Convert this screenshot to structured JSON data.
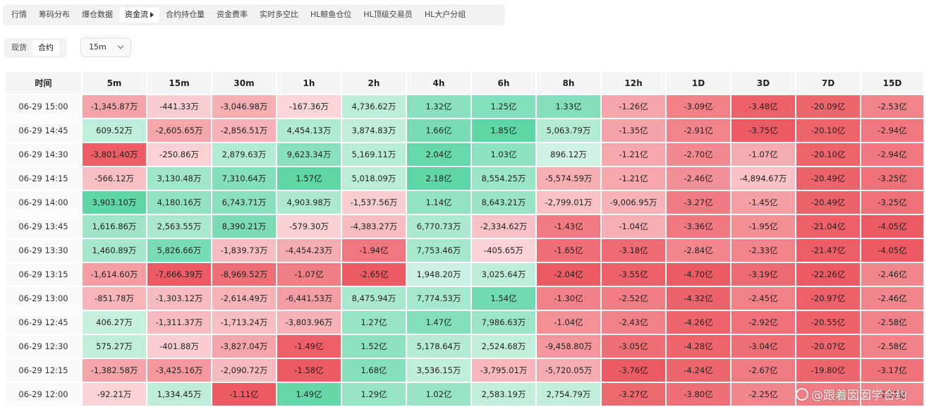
{
  "nav": {
    "tabs": [
      "行情",
      "筹码分布",
      "爆仓数据",
      "资金流",
      "合约持仓量",
      "资金费率",
      "实时多空比",
      "HL鲸鱼仓位",
      "HL顶级交易员",
      "HL大户分组"
    ],
    "active_index": 3
  },
  "segment": {
    "options": [
      "现货",
      "合约"
    ],
    "active_index": 1
  },
  "interval_select": {
    "value": "15m"
  },
  "table": {
    "time_header": "时间",
    "columns": [
      "5m",
      "15m",
      "30m",
      "1h",
      "2h",
      "4h",
      "6h",
      "8h",
      "12h",
      "1D",
      "3D",
      "7D",
      "15D"
    ],
    "rows": [
      {
        "time": "06-29 15:00",
        "cells": [
          "-1,345.87万",
          "-441.33万",
          "-3,046.98万",
          "-167.36万",
          "4,736.62万",
          "1.32亿",
          "1.25亿",
          "1.33亿",
          "-1.26亿",
          "-3.09亿",
          "-3.48亿",
          "-20.09亿",
          "-2.53亿"
        ]
      },
      {
        "time": "06-29 14:45",
        "cells": [
          "609.52万",
          "-2,605.65万",
          "-2,856.51万",
          "4,454.13万",
          "3,874.83万",
          "1.66亿",
          "1.85亿",
          "5,063.79万",
          "-1.35亿",
          "-2.91亿",
          "-3.75亿",
          "-20.10亿",
          "-2.94亿"
        ]
      },
      {
        "time": "06-29 14:30",
        "cells": [
          "-3,801.40万",
          "-250.86万",
          "2,879.63万",
          "9,623.34万",
          "5,169.11万",
          "2.04亿",
          "1.03亿",
          "896.12万",
          "-1.21亿",
          "-2.70亿",
          "-1.07亿",
          "-20.10亿",
          "-2.94亿"
        ]
      },
      {
        "time": "06-29 14:15",
        "cells": [
          "-566.12万",
          "3,130.48万",
          "7,310.64万",
          "1.57亿",
          "5,018.09万",
          "2.18亿",
          "8,554.25万",
          "-5,574.59万",
          "-1.21亿",
          "-2.46亿",
          "-4,894.67万",
          "-20.49亿",
          "-3.25亿"
        ]
      },
      {
        "time": "06-29 14:00",
        "cells": [
          "3,903.10万",
          "4,180.16万",
          "6,743.71万",
          "4,903.98万",
          "-1,537.56万",
          "1.14亿",
          "8,643.21万",
          "-2,799.01万",
          "-9,006.95万",
          "-3.27亿",
          "-1.45亿",
          "-20.49亿",
          "-3.25亿"
        ]
      },
      {
        "time": "06-29 13:45",
        "cells": [
          "1,616.86万",
          "2,563.55万",
          "8,390.21万",
          "-579.30万",
          "-4,383.27万",
          "6,770.73万",
          "-2,334.62万",
          "-1.43亿",
          "-1.04亿",
          "-3.36亿",
          "-1.95亿",
          "-21.04亿",
          "-4.05亿"
        ]
      },
      {
        "time": "06-29 13:30",
        "cells": [
          "1,460.89万",
          "5,826.66万",
          "-1,839.73万",
          "-4,454.23万",
          "-1.94亿",
          "7,753.46万",
          "-405.65万",
          "-1.65亿",
          "-3.18亿",
          "-2.84亿",
          "-2.33亿",
          "-21.47亿",
          "-4.05亿"
        ]
      },
      {
        "time": "06-29 13:15",
        "cells": [
          "-1,614.60万",
          "-7,666.39万",
          "-8,969.52万",
          "-1.07亿",
          "-2.65亿",
          "1,948.20万",
          "3,025.64万",
          "-2.04亿",
          "-3.55亿",
          "-4.70亿",
          "-3.19亿",
          "-22.26亿",
          "-2.46亿"
        ]
      },
      {
        "time": "06-29 13:00",
        "cells": [
          "-851.78万",
          "-1,303.12万",
          "-2,614.49万",
          "-6,441.53万",
          "8,475.94万",
          "7,774.53万",
          "1.54亿",
          "-1.30亿",
          "-2.52亿",
          "-4.32亿",
          "-2.45亿",
          "-20.97亿",
          "-2.46亿"
        ]
      },
      {
        "time": "06-29 12:45",
        "cells": [
          "406.27万",
          "-1,311.37万",
          "-1,713.24万",
          "-3,803.96万",
          "1.27亿",
          "1.47亿",
          "7,986.63万",
          "-1.04亿",
          "-2.43亿",
          "-4.26亿",
          "-2.92亿",
          "-20.55亿",
          "-2.58亿"
        ]
      },
      {
        "time": "06-29 12:30",
        "cells": [
          "575.27万",
          "-401.88万",
          "-3,827.04万",
          "-1.49亿",
          "1.52亿",
          "5,178.64万",
          "2,524.68万",
          "-9,458.80万",
          "-3.05亿",
          "-4.28亿",
          "-3.04亿",
          "-20.07亿",
          "-2.58亿"
        ]
      },
      {
        "time": "06-29 12:15",
        "cells": [
          "-1,382.58万",
          "-3,425.16万",
          "-2,090.72万",
          "-1.58亿",
          "1.68亿",
          "3,536.15万",
          "-3,795.01万",
          "-5,720.05万",
          "-3.76亿",
          "-4.24亿",
          "-2.67亿",
          "-19.80亿",
          "-3.17亿"
        ]
      },
      {
        "time": "06-29 12:00",
        "cells": [
          "-92.21万",
          "1,334.45万",
          "-1.11亿",
          "1.49亿",
          "1.29亿",
          "1.02亿",
          "2,583.19万",
          "2,754.79万",
          "-3.27亿",
          "-3.80亿",
          "-2.25亿",
          "",
          "-2.51亿"
        ]
      }
    ]
  },
  "colors": {
    "pos_light": "#e3f7ee",
    "pos_dark": "#5fd6a6",
    "neg_light": "#fde3e5",
    "neg_dark": "#ec5a63"
  },
  "watermark": {
    "text": "@跟着囡囡学合约"
  }
}
